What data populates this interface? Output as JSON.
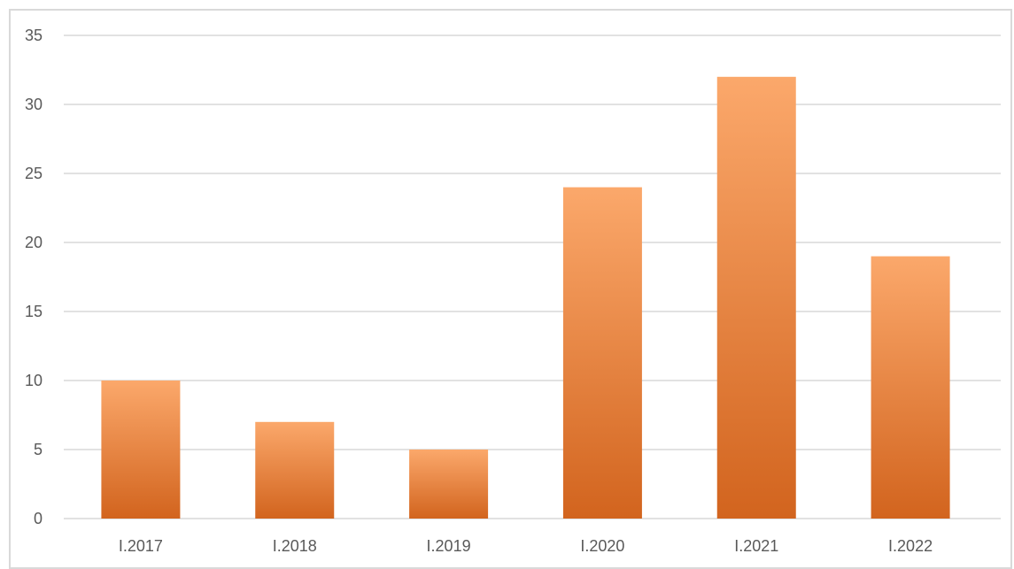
{
  "chart_data": {
    "type": "bar",
    "categories": [
      "I.2017",
      "I.2018",
      "I.2019",
      "I.2020",
      "I.2021",
      "I.2022"
    ],
    "values": [
      10,
      7,
      5,
      24,
      32,
      19
    ],
    "y_ticks": [
      "0",
      "5",
      "10",
      "15",
      "20",
      "25",
      "30",
      "35"
    ],
    "ylim": [
      0,
      35
    ],
    "grid": true,
    "legend": "none",
    "colors": {
      "bar_top": "#fba86b",
      "bar_bottom": "#d2641e",
      "grid": "#d9d9d9",
      "axis_text": "#595959"
    }
  }
}
